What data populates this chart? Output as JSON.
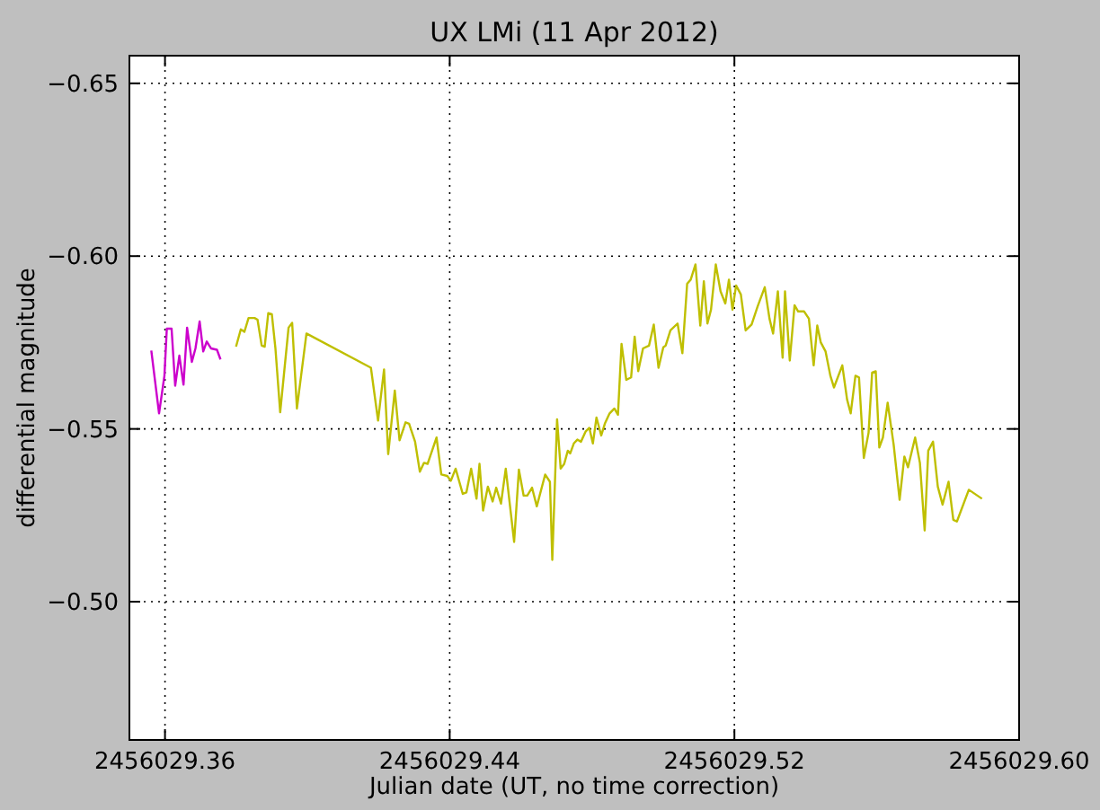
{
  "chart_data": {
    "type": "line",
    "title": "UX LMi (11 Apr 2012)",
    "xlabel": "Julian date (UT, no time correction)",
    "ylabel": "differential magnitude",
    "xlim": [
      2456029.35,
      2456029.6
    ],
    "xticks": [
      2456029.36,
      2456029.44,
      2456029.52,
      {
        "value": 2456029.6,
        "label": "2456029.60"
      }
    ],
    "ylim": [
      -0.46,
      -0.658
    ],
    "yticks": [
      {
        "value": -0.65,
        "label": "−0.65"
      },
      {
        "value": -0.6,
        "label": "−0.60"
      },
      {
        "value": -0.55,
        "label": "−0.55"
      },
      {
        "value": -0.5,
        "label": "−0.50"
      }
    ],
    "grid": true,
    "series": [
      {
        "color": "#cc00cc",
        "x": [
          2456029.35615,
          2456029.35833,
          2456029.35984,
          2456029.36051,
          2456029.36185,
          2456029.36286,
          2456029.36403,
          2456029.3652,
          2456029.36621,
          2456029.36755,
          2456029.36856,
          2456029.36973,
          2456029.37074,
          2456029.37174,
          2456029.37292,
          2456029.3746,
          2456029.3756
        ],
        "values": [
          -0.5727,
          -0.5545,
          -0.5654,
          -0.579,
          -0.579,
          -0.5625,
          -0.5712,
          -0.5628,
          -0.5793,
          -0.5694,
          -0.5733,
          -0.5811,
          -0.5724,
          -0.5753,
          -0.5733,
          -0.5729,
          -0.5701
        ]
      },
      {
        "color": "#bfbf00",
        "x": [
          2456029.37996,
          2456029.3813,
          2456029.38231,
          2456029.38348,
          2456029.38516,
          2456029.386,
          2456029.38717,
          2456029.38801,
          2456029.38902,
          2456029.39002,
          2456029.39103,
          2456029.39237,
          2456029.39472,
          2456029.39573,
          2456029.39707,
          2456029.39975,
          2456029.41786,
          2456029.41987,
          2456029.42155,
          2456029.42272,
          2456029.42457,
          2456029.42591,
          2456029.42759,
          2456029.42859,
          2456029.43027,
          2456029.43161,
          2456029.43279,
          2456029.43379,
          2456029.4363,
          2456029.43764,
          2456029.43931,
          2456029.44032,
          2456029.44166,
          2456029.44367,
          2456029.44468,
          2456029.44602,
          2456029.44753,
          2456029.44837,
          2456029.44938,
          2456029.45072,
          2456029.45206,
          2456029.45307,
          2456029.45441,
          2456029.45575,
          2456029.45709,
          2456029.4581,
          2456029.45944,
          2456029.46078,
          2456029.46179,
          2456029.46313,
          2456029.46447,
          2456029.46682,
          2456029.46816,
          2456029.46883,
          2456029.47017,
          2456029.47118,
          2456029.47218,
          2456029.47319,
          2456029.47386,
          2456029.47487,
          2456029.47587,
          2456029.47688,
          2456029.47822,
          2456029.47923,
          2456029.48023,
          2456029.48124,
          2456029.48258,
          2456029.48359,
          2456029.48493,
          2456029.48627,
          2456029.48728,
          2456029.48828,
          2456029.48962,
          2456029.49097,
          2456029.49197,
          2456029.49298,
          2456029.49432,
          2456029.496,
          2456029.49734,
          2456029.49868,
          2456029.50002,
          2456029.50068,
          2456029.50202,
          2456029.50403,
          2456029.50538,
          2456029.50672,
          2456029.50772,
          2456029.50906,
          2456029.51041,
          2456029.51141,
          2456029.51242,
          2456029.51342,
          2456029.51477,
          2456029.51611,
          2456029.51745,
          2456029.51846,
          2456029.51946,
          2456029.52047,
          2456029.52181,
          2456029.52315,
          2456029.52483,
          2456029.52651,
          2456029.52852,
          2456029.52986,
          2456029.53087,
          2456029.53221,
          2456029.53355,
          2456029.53422,
          2456029.53556,
          2456029.5369,
          2456029.53791,
          2456029.53959,
          2456029.54093,
          2456029.54227,
          2456029.54328,
          2456029.54428,
          2456029.54562,
          2456029.54696,
          2456029.54797,
          2456029.55032,
          2456029.55166,
          2456029.55267,
          2456029.55401,
          2456029.55501,
          2456029.55636,
          2456029.5577,
          2456029.5587,
          2456029.55971,
          2456029.56072,
          2456029.56172,
          2456029.56306,
          2456029.56474,
          2456029.56642,
          2456029.56776,
          2456029.56877,
          2456029.57078,
          2456029.57212,
          2456029.57346,
          2456029.57447,
          2456029.57581,
          2456029.57715,
          2456029.57849,
          2456029.58017,
          2456029.58151,
          2456029.58252,
          2456029.58587,
          2456029.58956
        ],
        "values": [
          -0.5738,
          -0.5788,
          -0.5781,
          -0.5821,
          -0.5821,
          -0.5816,
          -0.5741,
          -0.5738,
          -0.5835,
          -0.5832,
          -0.5733,
          -0.5548,
          -0.5793,
          -0.5807,
          -0.5559,
          -0.5776,
          -0.5677,
          -0.5524,
          -0.5672,
          -0.5427,
          -0.5611,
          -0.5467,
          -0.5519,
          -0.5515,
          -0.5463,
          -0.5376,
          -0.5402,
          -0.5399,
          -0.5475,
          -0.5368,
          -0.5364,
          -0.535,
          -0.5385,
          -0.5312,
          -0.5316,
          -0.5385,
          -0.5298,
          -0.5399,
          -0.5264,
          -0.5333,
          -0.529,
          -0.533,
          -0.5284,
          -0.5385,
          -0.5264,
          -0.5173,
          -0.5382,
          -0.5307,
          -0.5307,
          -0.533,
          -0.5276,
          -0.5368,
          -0.5347,
          -0.5121,
          -0.5528,
          -0.5385,
          -0.5399,
          -0.5437,
          -0.5429,
          -0.5458,
          -0.5469,
          -0.5463,
          -0.5493,
          -0.5503,
          -0.5458,
          -0.5533,
          -0.5481,
          -0.5515,
          -0.5545,
          -0.5559,
          -0.5541,
          -0.5746,
          -0.5642,
          -0.5649,
          -0.5767,
          -0.5667,
          -0.5733,
          -0.5741,
          -0.5802,
          -0.5677,
          -0.5736,
          -0.5741,
          -0.5785,
          -0.5805,
          -0.5719,
          -0.592,
          -0.5932,
          -0.5976,
          -0.5799,
          -0.5927,
          -0.5805,
          -0.5845,
          -0.5976,
          -0.5898,
          -0.5863,
          -0.5932,
          -0.5845,
          -0.5915,
          -0.5889,
          -0.5785,
          -0.5802,
          -0.5854,
          -0.591,
          -0.5819,
          -0.5776,
          -0.5898,
          -0.5706,
          -0.5898,
          -0.5698,
          -0.5858,
          -0.584,
          -0.584,
          -0.5819,
          -0.5684,
          -0.5799,
          -0.575,
          -0.5724,
          -0.5654,
          -0.562,
          -0.5684,
          -0.5585,
          -0.5545,
          -0.5654,
          -0.5649,
          -0.5416,
          -0.5489,
          -0.5663,
          -0.5667,
          -0.5446,
          -0.5475,
          -0.5576,
          -0.5455,
          -0.5295,
          -0.542,
          -0.5389,
          -0.5475,
          -0.5402,
          -0.5206,
          -0.5437,
          -0.5463,
          -0.5333,
          -0.5281,
          -0.5347,
          -0.5237,
          -0.5232,
          -0.5324,
          -0.5298
        ]
      }
    ]
  }
}
